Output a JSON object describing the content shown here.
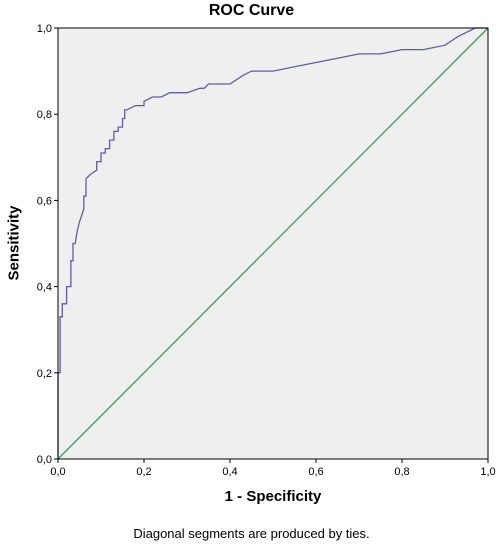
{
  "chart_data": {
    "type": "line",
    "title": "ROC Curve",
    "xlabel": "1 - Specificity",
    "ylabel": "Sensitivity",
    "footnote": "Diagonal segments are produced by ties.",
    "xlim": [
      0,
      1
    ],
    "ylim": [
      0,
      1
    ],
    "x_ticks": [
      "0,0",
      "0,2",
      "0,4",
      "0,6",
      "0,8",
      "1,0"
    ],
    "y_ticks": [
      "0,0",
      "0,2",
      "0,4",
      "0,6",
      "0,8",
      "1,0"
    ],
    "grid": false,
    "colors": {
      "plot_background": "#efefef",
      "roc_line": "#5b5ea6",
      "reference_line": "#3c9a5c"
    },
    "series": [
      {
        "x": [
          0,
          0,
          0.005,
          0.005,
          0.01,
          0.01,
          0.02,
          0.02,
          0.03,
          0.03,
          0.035,
          0.035,
          0.04,
          0.045,
          0.05,
          0.06,
          0.06,
          0.065,
          0.065,
          0.075,
          0.09,
          0.09,
          0.1,
          0.1,
          0.11,
          0.11,
          0.12,
          0.12,
          0.13,
          0.13,
          0.14,
          0.14,
          0.15,
          0.15,
          0.155,
          0.155,
          0.16,
          0.16,
          0.18,
          0.2,
          0.2,
          0.22,
          0.24,
          0.26,
          0.3,
          0.33,
          0.34,
          0.35,
          0.4,
          0.43,
          0.45,
          0.5,
          0.55,
          0.6,
          0.65,
          0.7,
          0.75,
          0.8,
          0.85,
          0.9,
          0.93,
          0.95,
          0.97,
          1.0
        ],
        "y": [
          0,
          0.2,
          0.2,
          0.33,
          0.33,
          0.36,
          0.36,
          0.4,
          0.4,
          0.46,
          0.46,
          0.5,
          0.5,
          0.53,
          0.55,
          0.58,
          0.61,
          0.61,
          0.65,
          0.66,
          0.67,
          0.69,
          0.69,
          0.71,
          0.71,
          0.72,
          0.72,
          0.74,
          0.74,
          0.76,
          0.76,
          0.77,
          0.77,
          0.79,
          0.79,
          0.81,
          0.81,
          0.81,
          0.82,
          0.82,
          0.83,
          0.84,
          0.84,
          0.85,
          0.85,
          0.86,
          0.86,
          0.87,
          0.87,
          0.89,
          0.9,
          0.9,
          0.91,
          0.92,
          0.93,
          0.94,
          0.94,
          0.95,
          0.95,
          0.96,
          0.98,
          0.99,
          1.0,
          1.0
        ]
      },
      {
        "x": [
          0,
          1
        ],
        "y": [
          0,
          1
        ]
      }
    ]
  }
}
